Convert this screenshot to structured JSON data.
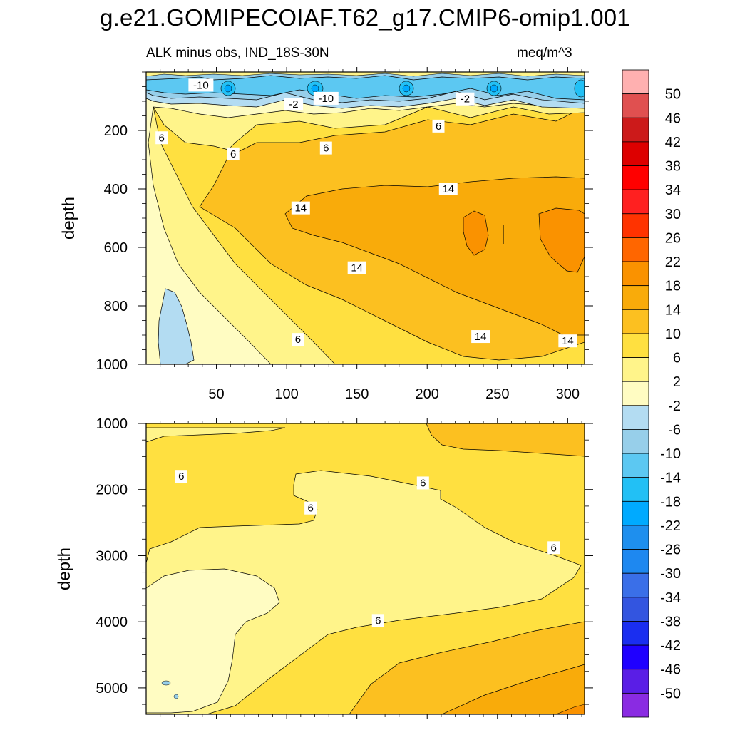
{
  "title": "g.e21.GOMIPECOIAF.T62_g17.CMIP6-omip1.001",
  "subtitle_left": "ALK minus obs, IND_18S-30N",
  "units": "meq/m^3",
  "colors": {
    "-50": "#8a2be2",
    "-46": "#5a1ee6",
    "-42": "#1f00ff",
    "-38": "#1a2ef0",
    "-34": "#3355e0",
    "-30": "#3a6fe8",
    "-26": "#1e88f0",
    "-22": "#1e8fee",
    "-18": "#00aaff",
    "-14": "#22c0f5",
    "-10": "#5cc8f2",
    "-6": "#97cfea",
    "-2": "#b3dcf2",
    "2": "#fffcc2",
    "6": "#fff48a",
    "10": "#ffe040",
    "14": "#fcc020",
    "18": "#f9ab0a",
    "22": "#fa9200",
    "26": "#ff6600",
    "30": "#ff3300",
    "34": "#ff2020",
    "38": "#ff0000",
    "42": "#dd0000",
    "46": "#cc1a1a",
    "50+": "#e05050",
    "top": "#ffb0b0"
  },
  "chart_data": [
    {
      "type": "contour",
      "panel": "upper",
      "ylabel": "depth",
      "xlabel": "",
      "xlim": [
        0,
        312
      ],
      "ylim": [
        1000,
        0
      ],
      "xticks": [
        50,
        100,
        150,
        200,
        250,
        300
      ],
      "yticks": [
        200,
        400,
        600,
        800,
        1000
      ],
      "contour_labels": [
        {
          "text": "-10",
          "x": 39,
          "y": 45
        },
        {
          "text": "-10",
          "x": 128,
          "y": 90
        },
        {
          "text": "-2",
          "x": 105,
          "y": 110
        },
        {
          "text": "-2",
          "x": 227,
          "y": 92
        },
        {
          "text": "6",
          "x": 11,
          "y": 225
        },
        {
          "text": "6",
          "x": 62,
          "y": 280
        },
        {
          "text": "6",
          "x": 128,
          "y": 260
        },
        {
          "text": "6",
          "x": 208,
          "y": 185
        },
        {
          "text": "14",
          "x": 110,
          "y": 465
        },
        {
          "text": "14",
          "x": 215,
          "y": 400
        },
        {
          "text": "14",
          "x": 150,
          "y": 670
        },
        {
          "text": "14",
          "x": 238,
          "y": 905
        },
        {
          "text": "14",
          "x": 300,
          "y": 920
        },
        {
          "text": "6",
          "x": 108,
          "y": 915
        }
      ]
    },
    {
      "type": "contour",
      "panel": "lower",
      "ylabel": "depth",
      "xlabel": "",
      "xlim": [
        0,
        312
      ],
      "ylim": [
        5400,
        1000
      ],
      "xticks": [
        50,
        100,
        150,
        200,
        250,
        300
      ],
      "yticks": [
        1000,
        2000,
        3000,
        4000,
        5000
      ],
      "contour_labels": [
        {
          "text": "6",
          "x": 25,
          "y": 1800
        },
        {
          "text": "6",
          "x": 117,
          "y": 2280
        },
        {
          "text": "6",
          "x": 197,
          "y": 1900
        },
        {
          "text": "6",
          "x": 290,
          "y": 2880
        },
        {
          "text": "6",
          "x": 165,
          "y": 3980
        }
      ]
    }
  ],
  "colorbar": {
    "labels": [
      "50",
      "46",
      "42",
      "38",
      "34",
      "30",
      "26",
      "22",
      "18",
      "14",
      "10",
      "6",
      "2",
      "-2",
      "-6",
      "-10",
      "-14",
      "-18",
      "-22",
      "-26",
      "-30",
      "-34",
      "-38",
      "-42",
      "-46",
      "-50"
    ],
    "boxes": [
      "#ffb0b0",
      "#e05050",
      "#cc1a1a",
      "#dd0000",
      "#ff0000",
      "#ff2020",
      "#ff3300",
      "#ff6600",
      "#fa9200",
      "#f9ab0a",
      "#fcc020",
      "#ffe040",
      "#fff48a",
      "#fffcc2",
      "#b3dcf2",
      "#97cfea",
      "#5cc8f2",
      "#22c0f5",
      "#00aaff",
      "#1e8fee",
      "#1e88f0",
      "#3a6fe8",
      "#3355e0",
      "#1a2ef0",
      "#1f00ff",
      "#5a1ee6",
      "#8a2be2"
    ]
  }
}
